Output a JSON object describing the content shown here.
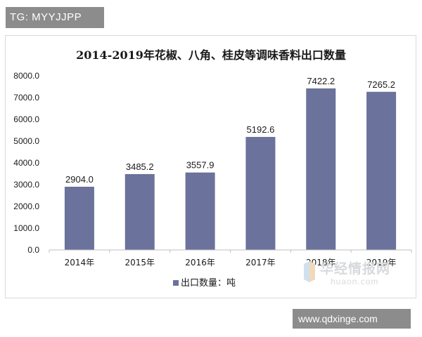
{
  "top_tag": "TG: MYYJJPP",
  "bottom_tag": "www.qdxinge.com",
  "watermark": {
    "cn": "华经情报网",
    "en": "huaon.com"
  },
  "colors": {
    "bar": "#6b729b",
    "axis": "#bfbfbf",
    "text": "#1a1a1a",
    "tag_bg": "#8c8c8c"
  },
  "chart_data": {
    "type": "bar",
    "title": "2014-2019年花椒、八角、桂皮等调味香料出口数量",
    "categories": [
      "2014年",
      "2015年",
      "2016年",
      "2017年",
      "2018年",
      "2019年"
    ],
    "series": [
      {
        "name": "出口数量：吨",
        "values": [
          2904.0,
          3485.2,
          3557.9,
          5192.6,
          7422.2,
          7265.2
        ]
      }
    ],
    "data_labels": [
      "2904.0",
      "3485.2",
      "3557.9",
      "5192.6",
      "7422.2",
      "7265.2"
    ],
    "y_ticks": [
      "0.0",
      "1000.0",
      "2000.0",
      "3000.0",
      "4000.0",
      "5000.0",
      "6000.0",
      "7000.0",
      "8000.0"
    ],
    "ylim": [
      0,
      8000
    ],
    "xlabel": "",
    "ylabel": "",
    "grid": false,
    "legend": "bottom"
  }
}
